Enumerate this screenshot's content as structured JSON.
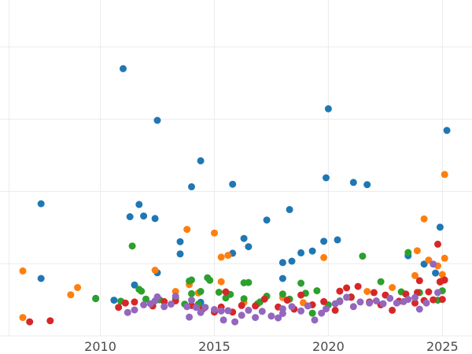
{
  "chart_data": {
    "type": "scatter",
    "title": "",
    "xlabel": "",
    "ylabel": "",
    "xlim": [
      2005.6,
      2026.3
    ],
    "ylim": [
      0,
      100
    ],
    "grid": true,
    "legend": "none",
    "x_ticks": [
      2010,
      2015,
      2020,
      2025
    ],
    "x_tick_labels": [
      "2010",
      "2015",
      "2020",
      "2025"
    ],
    "y_gridlines": [
      0,
      20,
      40,
      60,
      80,
      100
    ],
    "series": [
      {
        "color": "#1f77b4",
        "points": [
          [
            2007.4,
            36.6
          ],
          [
            2007.4,
            15.9
          ],
          [
            2009.8,
            10.4
          ],
          [
            2010.6,
            9.9
          ],
          [
            2011.0,
            74.0
          ],
          [
            2011.3,
            33.0
          ],
          [
            2011.5,
            14.1
          ],
          [
            2011.7,
            36.4
          ],
          [
            2011.9,
            33.2
          ],
          [
            2012.4,
            32.5
          ],
          [
            2012.5,
            59.7
          ],
          [
            2012.5,
            17.5
          ],
          [
            2013.5,
            26.1
          ],
          [
            2013.5,
            22.7
          ],
          [
            2014.0,
            41.3
          ],
          [
            2014.4,
            48.5
          ],
          [
            2014.4,
            9.3
          ],
          [
            2015.8,
            42.0
          ],
          [
            2015.8,
            22.9
          ],
          [
            2016.3,
            27.0
          ],
          [
            2016.5,
            24.7
          ],
          [
            2017.3,
            32.1
          ],
          [
            2018.0,
            20.3
          ],
          [
            2018.0,
            15.9
          ],
          [
            2018.3,
            35.0
          ],
          [
            2018.4,
            20.7
          ],
          [
            2018.8,
            23.0
          ],
          [
            2019.3,
            23.5
          ],
          [
            2019.8,
            26.2
          ],
          [
            2019.9,
            43.8
          ],
          [
            2020.0,
            62.9
          ],
          [
            2020.4,
            26.6
          ],
          [
            2021.1,
            42.5
          ],
          [
            2021.7,
            41.9
          ],
          [
            2023.5,
            22.2
          ],
          [
            2024.2,
            19.9
          ],
          [
            2024.7,
            17.4
          ],
          [
            2024.9,
            30.1
          ],
          [
            2025.2,
            56.9
          ]
        ]
      },
      {
        "color": "#ff7f0e",
        "points": [
          [
            2006.6,
            18.0
          ],
          [
            2006.6,
            5.1
          ],
          [
            2008.7,
            11.4
          ],
          [
            2009.0,
            13.4
          ],
          [
            2012.4,
            18.2
          ],
          [
            2013.3,
            12.3
          ],
          [
            2013.8,
            29.5
          ],
          [
            2013.9,
            14.2
          ],
          [
            2014.3,
            11.9
          ],
          [
            2015.0,
            28.5
          ],
          [
            2015.3,
            21.8
          ],
          [
            2015.3,
            15.0
          ],
          [
            2015.6,
            22.3
          ],
          [
            2016.3,
            9.3
          ],
          [
            2018.0,
            10.6
          ],
          [
            2018.9,
            9.2
          ],
          [
            2019.8,
            21.7
          ],
          [
            2021.7,
            12.3
          ],
          [
            2022.8,
            13.4
          ],
          [
            2023.8,
            16.7
          ],
          [
            2023.9,
            23.6
          ],
          [
            2024.2,
            32.4
          ],
          [
            2024.4,
            21.0
          ],
          [
            2024.8,
            19.4
          ],
          [
            2025.0,
            17.0
          ],
          [
            2025.0,
            15.3
          ],
          [
            2025.1,
            21.5
          ],
          [
            2025.1,
            44.7
          ],
          [
            2024.9,
            14.9
          ]
        ]
      },
      {
        "color": "#2ca02c",
        "points": [
          [
            2009.8,
            10.3
          ],
          [
            2010.9,
            9.6
          ],
          [
            2011.4,
            24.9
          ],
          [
            2011.7,
            12.9
          ],
          [
            2011.8,
            12.4
          ],
          [
            2012.0,
            10.2
          ],
          [
            2012.6,
            10.0
          ],
          [
            2013.3,
            10.5
          ],
          [
            2013.7,
            8.8
          ],
          [
            2013.9,
            15.2
          ],
          [
            2014.0,
            15.5
          ],
          [
            2014.0,
            11.7
          ],
          [
            2014.3,
            8.8
          ],
          [
            2014.4,
            12.3
          ],
          [
            2014.7,
            16.1
          ],
          [
            2014.8,
            15.4
          ],
          [
            2015.2,
            12.1
          ],
          [
            2015.5,
            10.5
          ],
          [
            2015.7,
            11.5
          ],
          [
            2016.3,
            14.7
          ],
          [
            2016.3,
            10.3
          ],
          [
            2016.5,
            14.8
          ],
          [
            2016.9,
            8.9
          ],
          [
            2017.0,
            9.4
          ],
          [
            2017.3,
            11.0
          ],
          [
            2018.0,
            11.6
          ],
          [
            2018.3,
            10.2
          ],
          [
            2018.8,
            14.6
          ],
          [
            2019.0,
            11.8
          ],
          [
            2019.3,
            6.3
          ],
          [
            2019.5,
            12.5
          ],
          [
            2020.0,
            8.6
          ],
          [
            2020.5,
            9.7
          ],
          [
            2021.0,
            10.8
          ],
          [
            2021.5,
            22.1
          ],
          [
            2022.3,
            15.0
          ],
          [
            2023.2,
            12.2
          ],
          [
            2023.5,
            23.1
          ],
          [
            2024.0,
            12.0
          ],
          [
            2024.8,
            9.9
          ],
          [
            2025.0,
            12.5
          ]
        ]
      },
      {
        "color": "#d62728",
        "points": [
          [
            2006.9,
            3.9
          ],
          [
            2007.8,
            4.2
          ],
          [
            2010.8,
            7.9
          ],
          [
            2011.1,
            9.1
          ],
          [
            2011.5,
            9.4
          ],
          [
            2012.3,
            8.3
          ],
          [
            2012.8,
            9.5
          ],
          [
            2013.3,
            9.7
          ],
          [
            2014.0,
            8.4
          ],
          [
            2014.5,
            7.5
          ],
          [
            2015.0,
            6.6
          ],
          [
            2015.3,
            8.0
          ],
          [
            2015.5,
            12.2
          ],
          [
            2015.8,
            6.6
          ],
          [
            2016.2,
            8.4
          ],
          [
            2016.8,
            8.3
          ],
          [
            2017.2,
            10.2
          ],
          [
            2017.8,
            8.0
          ],
          [
            2018.2,
            9.9
          ],
          [
            2018.5,
            7.4
          ],
          [
            2018.8,
            11.3
          ],
          [
            2019.3,
            8.6
          ],
          [
            2019.8,
            9.5
          ],
          [
            2020.3,
            7.1
          ],
          [
            2020.5,
            12.4
          ],
          [
            2020.8,
            13.3
          ],
          [
            2021.0,
            10.7
          ],
          [
            2021.3,
            13.7
          ],
          [
            2021.8,
            9.4
          ],
          [
            2022.0,
            12.0
          ],
          [
            2022.3,
            8.6
          ],
          [
            2022.5,
            11.3
          ],
          [
            2022.8,
            7.1
          ],
          [
            2023.1,
            9.6
          ],
          [
            2023.4,
            11.6
          ],
          [
            2023.8,
            9.1
          ],
          [
            2023.9,
            12.0
          ],
          [
            2024.0,
            15.3
          ],
          [
            2024.2,
            9.8
          ],
          [
            2024.4,
            12.2
          ],
          [
            2024.6,
            10.0
          ],
          [
            2024.8,
            25.4
          ],
          [
            2024.9,
            15.0
          ],
          [
            2025.1,
            15.5
          ],
          [
            2025.0,
            10.1
          ]
        ]
      },
      {
        "color": "#9467bd",
        "points": [
          [
            2011.2,
            6.5
          ],
          [
            2011.5,
            7.2
          ],
          [
            2011.9,
            8.6
          ],
          [
            2012.2,
            8.9
          ],
          [
            2012.4,
            9.7
          ],
          [
            2012.5,
            10.8
          ],
          [
            2012.8,
            8.1
          ],
          [
            2013.1,
            8.8
          ],
          [
            2013.3,
            11.0
          ],
          [
            2013.8,
            8.1
          ],
          [
            2013.9,
            5.2
          ],
          [
            2014.0,
            9.9
          ],
          [
            2014.2,
            7.9
          ],
          [
            2014.4,
            6.5
          ],
          [
            2014.6,
            7.9
          ],
          [
            2015.0,
            7.3
          ],
          [
            2015.3,
            6.9
          ],
          [
            2015.4,
            4.4
          ],
          [
            2015.6,
            7.0
          ],
          [
            2015.9,
            3.9
          ],
          [
            2016.2,
            5.7
          ],
          [
            2016.5,
            7.1
          ],
          [
            2016.8,
            5.1
          ],
          [
            2017.1,
            6.8
          ],
          [
            2017.5,
            5.5
          ],
          [
            2017.8,
            5.0
          ],
          [
            2018.0,
            6.2
          ],
          [
            2018.0,
            7.5
          ],
          [
            2018.4,
            8.1
          ],
          [
            2018.8,
            6.9
          ],
          [
            2019.1,
            8.3
          ],
          [
            2019.4,
            4.4
          ],
          [
            2019.7,
            6.3
          ],
          [
            2019.9,
            7.5
          ],
          [
            2020.3,
            8.9
          ],
          [
            2020.5,
            9.5
          ],
          [
            2020.8,
            10.7
          ],
          [
            2021.1,
            8.1
          ],
          [
            2021.4,
            9.4
          ],
          [
            2021.8,
            9.1
          ],
          [
            2022.1,
            9.7
          ],
          [
            2022.4,
            8.9
          ],
          [
            2022.7,
            10.4
          ],
          [
            2023.0,
            9.1
          ],
          [
            2023.3,
            9.5
          ],
          [
            2023.5,
            10.1
          ],
          [
            2023.8,
            10.6
          ],
          [
            2024.0,
            7.4
          ],
          [
            2024.3,
            9.1
          ],
          [
            2024.6,
            19.9
          ],
          [
            2024.8,
            12.0
          ]
        ]
      }
    ]
  }
}
